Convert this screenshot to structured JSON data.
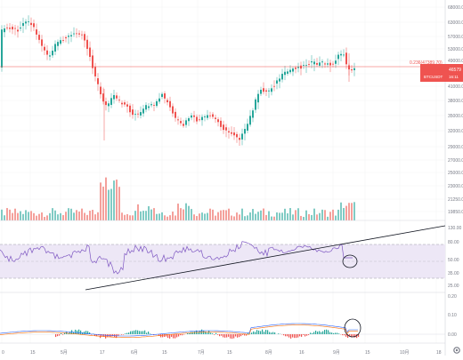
{
  "colors": {
    "up": "#26a69a",
    "down": "#ef5350",
    "vol_up": "#80cbc4",
    "vol_down": "#f4a09b",
    "rsi_line": "#7e57c2",
    "rsi_band": "#ede7f6",
    "fib_line": "#ef5350",
    "price_badge": "#ef5350",
    "macd_line": "#2962ff",
    "signal_line": "#ff6d00",
    "grid": "#eef0f3",
    "text": "#787b86"
  },
  "price_axis": {
    "ticks": [
      "68000.00",
      "63000.00",
      "57000.00",
      "53000.00",
      "49000.00",
      "45000.00",
      "41000.00",
      "38000.00",
      "35000.00",
      "32000.00",
      "29000.00",
      "27000.00",
      "25000.00",
      "23000.00",
      "21250.00",
      "19850.00"
    ]
  },
  "rsi_axis": {
    "ticks": [
      "130.00",
      "80.00",
      "50.00",
      "35.00",
      "25.00"
    ]
  },
  "macd_axis": {
    "ticks": [
      "0.20",
      "0.10",
      "0.00"
    ]
  },
  "time_axis": {
    "labels": [
      "0",
      "15",
      "5月",
      "17",
      "6月",
      "15",
      "7月",
      "15",
      "8月",
      "16",
      "9月",
      "15",
      "10月",
      "18"
    ]
  },
  "fib": {
    "label": "0.236(47389.70)"
  },
  "price_badge": {
    "price": "46579",
    "pair": "BTCUSDT",
    "countdown": "16:11"
  },
  "toolbar": {
    "settings_icon": "gear-icon"
  },
  "chart_data": {
    "type": "candlestick",
    "symbol": "BTCUSDT",
    "fib_level": {
      "ratio": 0.236,
      "price": 47389.7
    },
    "last_price": 46579,
    "rsi_bands": [
      70,
      30
    ],
    "price_range": [
      19850,
      68000
    ]
  }
}
